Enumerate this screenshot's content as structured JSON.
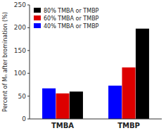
{
  "chart_data": {
    "type": "bar",
    "y_label": "Percent of Mₙ after bromination (%)",
    "categories": [
      "TMBA",
      "TMBP"
    ],
    "series": [
      {
        "name": "40% TMBA or TMBP",
        "color": "#0000ff",
        "values": [
          67,
          73
        ]
      },
      {
        "name": "60% TMBA or TMBP",
        "color": "#dd0000",
        "values": [
          56,
          113
        ]
      },
      {
        "name": "80% TMBA or TMBP",
        "color": "#000000",
        "values": [
          60,
          198
        ]
      }
    ],
    "ylim": [
      0,
      250
    ],
    "yticks": [
      0,
      50,
      100,
      150,
      200,
      250
    ],
    "grid": false,
    "legend": "top-left"
  }
}
